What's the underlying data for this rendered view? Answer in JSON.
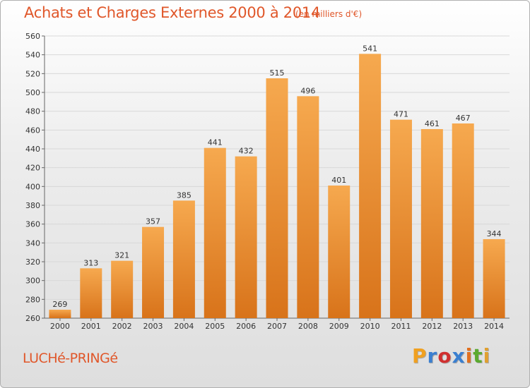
{
  "header": {
    "title": "Achats et Charges Externes 2000 à 2014",
    "unit": "(en milliers d'€)"
  },
  "footer": {
    "commune": "LUCHé-PRINGé",
    "brand": "Proxiti",
    "brand_colors": [
      "#f0a020",
      "#3a7fd0",
      "#d03030",
      "#3a7fd0",
      "#e07020",
      "#5aaa30",
      "#e0a030"
    ]
  },
  "colors": {
    "accent": "#e0572a",
    "bar_light": "#f6a94f",
    "bar_dark": "#d8731a",
    "grid": "#d8d8d8"
  },
  "chart_data": {
    "type": "bar",
    "title": "Achats et Charges Externes 2000 à 2014",
    "subtitle": "(en milliers d'€)",
    "categories": [
      "2000",
      "2001",
      "2002",
      "2003",
      "2004",
      "2005",
      "2006",
      "2007",
      "2008",
      "2009",
      "2010",
      "2011",
      "2012",
      "2013",
      "2014"
    ],
    "values": [
      269,
      313,
      321,
      357,
      385,
      441,
      432,
      515,
      496,
      401,
      541,
      471,
      461,
      467,
      344
    ],
    "ylim": [
      260,
      560
    ],
    "yticks": [
      260,
      280,
      300,
      320,
      340,
      360,
      380,
      400,
      420,
      440,
      460,
      480,
      500,
      520,
      540,
      560
    ],
    "grid": true,
    "data_labels": true,
    "legend": "none"
  }
}
